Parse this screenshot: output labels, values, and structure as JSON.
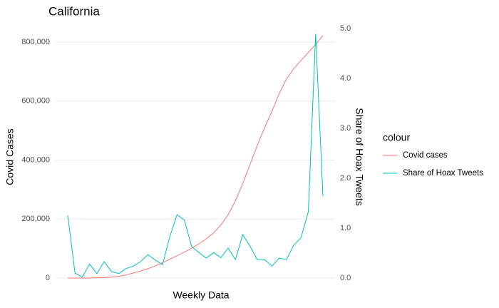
{
  "chart_data": {
    "type": "line",
    "title": "California",
    "xlabel": "Weekly Data",
    "ylabel": "Covid Cases",
    "y2label": "Share of Hoax Tweets",
    "legend_title": "colour",
    "legend": "right",
    "grid": true,
    "ylim": [
      0,
      846000
    ],
    "yticks": [
      {
        "value": 0,
        "label": "0"
      },
      {
        "value": 200000,
        "label": "200,000"
      },
      {
        "value": 400000,
        "label": "400,000"
      },
      {
        "value": 600000,
        "label": "600,000"
      },
      {
        "value": 800000,
        "label": "800,000"
      }
    ],
    "y2lim": [
      0,
      5
    ],
    "y2ticks": [
      {
        "value": 0,
        "label": "0.0"
      },
      {
        "value": 1,
        "label": "1.0"
      },
      {
        "value": 2,
        "label": "2.0"
      },
      {
        "value": 3,
        "label": "3.0"
      },
      {
        "value": 4,
        "label": "4.0"
      },
      {
        "value": 5,
        "label": "5.0"
      }
    ],
    "series": [
      {
        "name": "Covid cases",
        "color": "#F8766D",
        "values": [
          0,
          0,
          0,
          0,
          500,
          1500,
          3000,
          6000,
          11000,
          17000,
          24000,
          32000,
          41000,
          52000,
          64000,
          76000,
          88000,
          101000,
          116000,
          133000,
          153000,
          180000,
          215000,
          262000,
          320000,
          385000,
          450000,
          510000,
          565000,
          625000,
          675000,
          710000,
          738000,
          765000,
          792000,
          822000
        ]
      },
      {
        "name": "Share of Hoax Tweets",
        "color": "#00BFC4",
        "axis": "y2",
        "values": [
          1.26,
          0.1,
          0.02,
          0.28,
          0.09,
          0.33,
          0.13,
          0.09,
          0.19,
          0.24,
          0.33,
          0.47,
          0.36,
          0.27,
          0.83,
          1.27,
          1.16,
          0.63,
          0.51,
          0.4,
          0.51,
          0.41,
          0.6,
          0.37,
          0.87,
          0.64,
          0.37,
          0.37,
          0.24,
          0.4,
          0.37,
          0.66,
          0.81,
          1.33,
          4.89,
          1.64
        ]
      }
    ]
  }
}
